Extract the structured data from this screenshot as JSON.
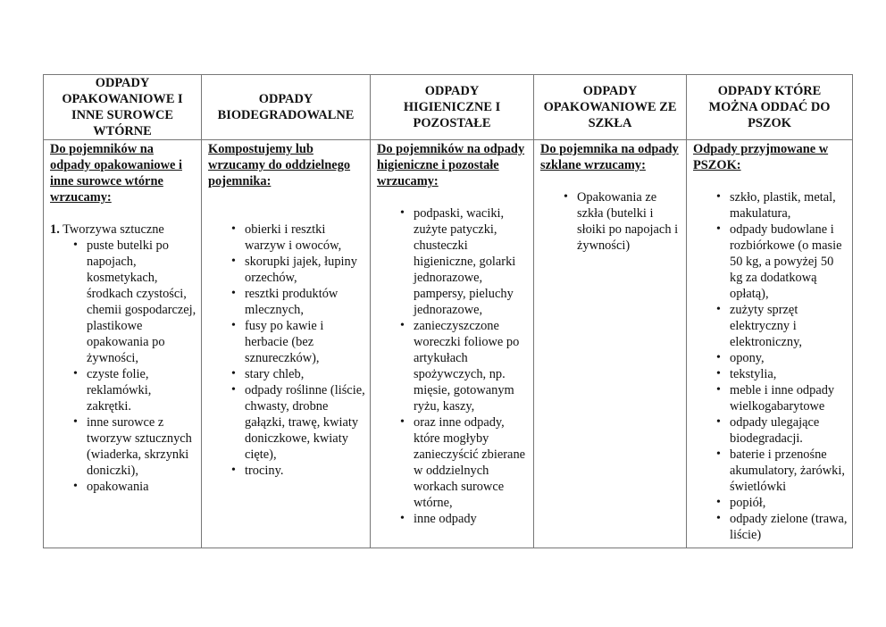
{
  "headers": [
    "ODPADY OPAKOWANIOWE I INNE SUROWCE WTÓRNE",
    "ODPADY BIODEGRADOWALNE",
    "ODPADY HIGIENICZNE I POZOSTAŁE",
    "ODPADY OPAKOWANIOWE ZE SZKŁA",
    "ODPADY KTÓRE MOŻNA ODDAĆ DO PSZOK"
  ],
  "columns": [
    {
      "intro": "Do pojemników na odpady opakowaniowe i inne surowce wtórne wrzucamy:",
      "group_number": "1.",
      "group_label": " Tworzywa sztuczne",
      "items": [
        "puste butelki po napojach, kosmetykach, środkach czystości, chemii gospodarczej, plastikowe opakowania po żywności,",
        "czyste folie, reklamówki, zakrętki.",
        "inne surowce z tworzyw sztucznych (wiaderka, skrzynki doniczki),",
        "opakowania"
      ]
    },
    {
      "intro": "Kompostujemy lub wrzucamy do oddzielnego pojemnika:",
      "items": [
        "obierki i resztki warzyw i owoców,",
        "skorupki jajek, łupiny orzechów,",
        "resztki produktów mlecznych,",
        "fusy po kawie i herbacie (bez sznureczków),",
        "stary chleb,",
        "odpady roślinne (liście, chwasty, drobne gałązki, trawę, kwiaty doniczkowe, kwiaty cięte),",
        "trociny."
      ]
    },
    {
      "intro": "Do pojemników na odpady higieniczne i pozostałe wrzucamy:",
      "items": [
        "podpaski, waciki, zużyte patyczki, chusteczki higieniczne, golarki jednorazowe, pampersy, pieluchy jednorazowe,",
        "zanieczyszczone woreczki foliowe po artykułach spożywczych, np. mięsie, gotowanym ryżu, kaszy,",
        "oraz inne odpady, które mogłyby zanieczyścić zbierane w oddzielnych workach surowce wtórne,",
        "inne odpady"
      ]
    },
    {
      "intro": "Do pojemnika na odpady szklane wrzucamy:",
      "items": [
        "Opakowania ze szkła (butelki i słoiki po napojach i żywności)"
      ]
    },
    {
      "intro": "Odpady przyjmowane w PSZOK:",
      "items": [
        "szkło, plastik, metal, makulatura,",
        "odpady budowlane i rozbiórkowe (o masie 50 kg, a powyżej 50 kg za dodatkową opłatą),",
        "zużyty sprzęt elektryczny i elektroniczny,",
        "opony,",
        "tekstylia,",
        "meble i inne odpady wielkogabarytowe",
        "odpady ulegające biodegradacji.",
        "baterie i przenośne akumulatory, żarówki, świetlówki",
        "popiół,",
        "odpady zielone (trawa, liście)"
      ]
    }
  ]
}
